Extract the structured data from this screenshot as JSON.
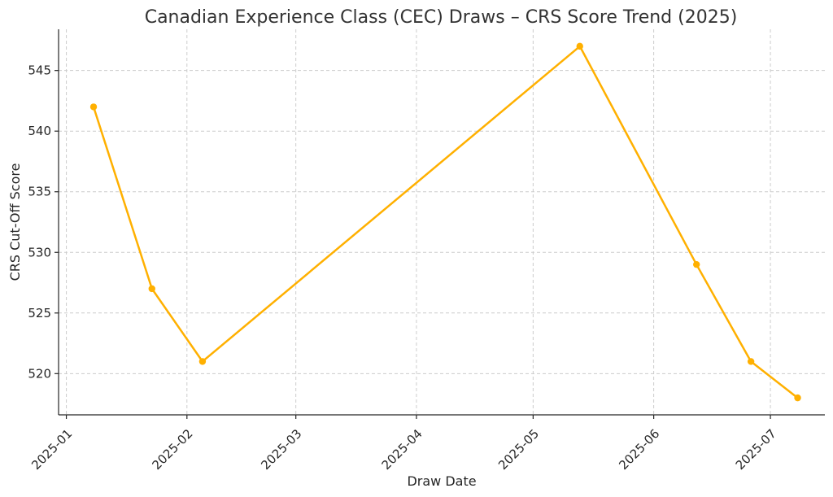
{
  "chart_data": {
    "type": "line",
    "title": "Canadian Experience Class (CEC) Draws – CRS Score Trend (2025)",
    "xlabel": "Draw Date",
    "ylabel": "CRS Cut-Off Score",
    "x_type": "date",
    "x_ticks": [
      "2025-01",
      "2025-02",
      "2025-03",
      "2025-04",
      "2025-05",
      "2025-06",
      "2025-07"
    ],
    "y_ticks": [
      520,
      525,
      530,
      535,
      540,
      545
    ],
    "xlim": [
      "2024-12-30",
      "2025-07-15"
    ],
    "ylim": [
      516.6,
      548.4
    ],
    "grid": true,
    "color": "#FFB000",
    "series": [
      {
        "name": "",
        "points": [
          {
            "x": "2025-01-08",
            "y": 542
          },
          {
            "x": "2025-01-23",
            "y": 527
          },
          {
            "x": "2025-02-05",
            "y": 521
          },
          {
            "x": "2025-05-13",
            "y": 547
          },
          {
            "x": "2025-06-12",
            "y": 529
          },
          {
            "x": "2025-06-26",
            "y": 521
          },
          {
            "x": "2025-07-08",
            "y": 518
          }
        ]
      }
    ]
  }
}
